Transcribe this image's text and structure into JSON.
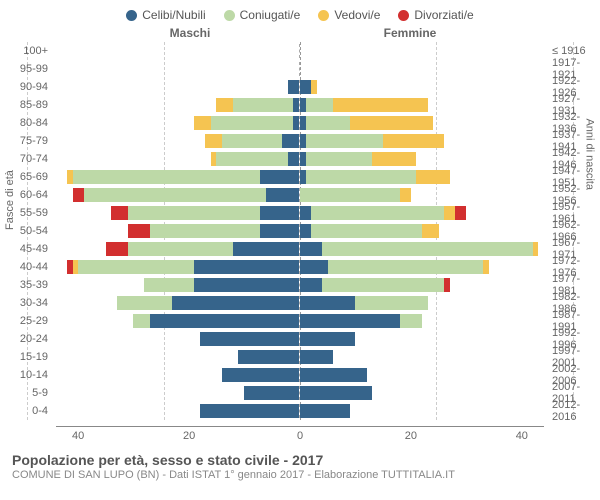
{
  "legend": [
    {
      "label": "Celibi/Nubili",
      "color": "#36648b"
    },
    {
      "label": "Coniugati/e",
      "color": "#bdd9a7"
    },
    {
      "label": "Vedovi/e",
      "color": "#f5c451"
    },
    {
      "label": "Divorziati/e",
      "color": "#d22f2f"
    }
  ],
  "gender": {
    "male": "Maschi",
    "female": "Femmine"
  },
  "y_left_label": "Fasce di età",
  "y_right_label": "Anni di nascita",
  "title": "Popolazione per età, sesso e stato civile - 2017",
  "source": "COMUNE DI SAN LUPO (BN) - Dati ISTAT 1° gennaio 2017 - Elaborazione TUTTITALIA.IT",
  "x_ticks": [
    40,
    20,
    0,
    20,
    40
  ],
  "x_max": 44,
  "colors": {
    "single": "#36648b",
    "married": "#bdd9a7",
    "widowed": "#f5c451",
    "divorced": "#d22f2f",
    "grid": "#cccccc",
    "center": "#999999"
  },
  "rows": [
    {
      "age": "100+",
      "birth": "≤ 1916",
      "m": {
        "single": 0,
        "married": 0,
        "widowed": 0,
        "divorced": 0
      },
      "f": {
        "single": 0,
        "married": 0,
        "widowed": 0,
        "divorced": 0
      }
    },
    {
      "age": "95-99",
      "birth": "1917-1921",
      "m": {
        "single": 0,
        "married": 0,
        "widowed": 0,
        "divorced": 0
      },
      "f": {
        "single": 0,
        "married": 0,
        "widowed": 0,
        "divorced": 0
      }
    },
    {
      "age": "90-94",
      "birth": "1922-1926",
      "m": {
        "single": 2,
        "married": 0,
        "widowed": 0,
        "divorced": 0
      },
      "f": {
        "single": 2,
        "married": 0,
        "widowed": 1,
        "divorced": 0
      }
    },
    {
      "age": "85-89",
      "birth": "1927-1931",
      "m": {
        "single": 1,
        "married": 11,
        "widowed": 3,
        "divorced": 0
      },
      "f": {
        "single": 1,
        "married": 5,
        "widowed": 17,
        "divorced": 0
      }
    },
    {
      "age": "80-84",
      "birth": "1932-1936",
      "m": {
        "single": 1,
        "married": 15,
        "widowed": 3,
        "divorced": 0
      },
      "f": {
        "single": 1,
        "married": 8,
        "widowed": 15,
        "divorced": 0
      }
    },
    {
      "age": "75-79",
      "birth": "1937-1941",
      "m": {
        "single": 3,
        "married": 11,
        "widowed": 3,
        "divorced": 0
      },
      "f": {
        "single": 1,
        "married": 14,
        "widowed": 11,
        "divorced": 0
      }
    },
    {
      "age": "70-74",
      "birth": "1942-1946",
      "m": {
        "single": 2,
        "married": 13,
        "widowed": 1,
        "divorced": 0
      },
      "f": {
        "single": 1,
        "married": 12,
        "widowed": 8,
        "divorced": 0
      }
    },
    {
      "age": "65-69",
      "birth": "1947-1951",
      "m": {
        "single": 7,
        "married": 34,
        "widowed": 1,
        "divorced": 0
      },
      "f": {
        "single": 1,
        "married": 20,
        "widowed": 6,
        "divorced": 0
      }
    },
    {
      "age": "60-64",
      "birth": "1952-1956",
      "m": {
        "single": 6,
        "married": 33,
        "widowed": 0,
        "divorced": 2
      },
      "f": {
        "single": 0,
        "married": 18,
        "widowed": 2,
        "divorced": 0
      }
    },
    {
      "age": "55-59",
      "birth": "1957-1961",
      "m": {
        "single": 7,
        "married": 24,
        "widowed": 0,
        "divorced": 3
      },
      "f": {
        "single": 2,
        "married": 24,
        "widowed": 2,
        "divorced": 2
      }
    },
    {
      "age": "50-54",
      "birth": "1962-1966",
      "m": {
        "single": 7,
        "married": 20,
        "widowed": 0,
        "divorced": 4
      },
      "f": {
        "single": 2,
        "married": 20,
        "widowed": 3,
        "divorced": 0
      }
    },
    {
      "age": "45-49",
      "birth": "1967-1971",
      "m": {
        "single": 12,
        "married": 19,
        "widowed": 0,
        "divorced": 4
      },
      "f": {
        "single": 4,
        "married": 38,
        "widowed": 1,
        "divorced": 0
      }
    },
    {
      "age": "40-44",
      "birth": "1972-1976",
      "m": {
        "single": 19,
        "married": 21,
        "widowed": 1,
        "divorced": 1
      },
      "f": {
        "single": 5,
        "married": 28,
        "widowed": 1,
        "divorced": 0
      }
    },
    {
      "age": "35-39",
      "birth": "1977-1981",
      "m": {
        "single": 19,
        "married": 9,
        "widowed": 0,
        "divorced": 0
      },
      "f": {
        "single": 4,
        "married": 22,
        "widowed": 0,
        "divorced": 1
      }
    },
    {
      "age": "30-34",
      "birth": "1982-1986",
      "m": {
        "single": 23,
        "married": 10,
        "widowed": 0,
        "divorced": 0
      },
      "f": {
        "single": 10,
        "married": 13,
        "widowed": 0,
        "divorced": 0
      }
    },
    {
      "age": "25-29",
      "birth": "1987-1991",
      "m": {
        "single": 27,
        "married": 3,
        "widowed": 0,
        "divorced": 0
      },
      "f": {
        "single": 18,
        "married": 4,
        "widowed": 0,
        "divorced": 0
      }
    },
    {
      "age": "20-24",
      "birth": "1992-1996",
      "m": {
        "single": 18,
        "married": 0,
        "widowed": 0,
        "divorced": 0
      },
      "f": {
        "single": 10,
        "married": 0,
        "widowed": 0,
        "divorced": 0
      }
    },
    {
      "age": "15-19",
      "birth": "1997-2001",
      "m": {
        "single": 11,
        "married": 0,
        "widowed": 0,
        "divorced": 0
      },
      "f": {
        "single": 6,
        "married": 0,
        "widowed": 0,
        "divorced": 0
      }
    },
    {
      "age": "10-14",
      "birth": "2002-2006",
      "m": {
        "single": 14,
        "married": 0,
        "widowed": 0,
        "divorced": 0
      },
      "f": {
        "single": 12,
        "married": 0,
        "widowed": 0,
        "divorced": 0
      }
    },
    {
      "age": "5-9",
      "birth": "2007-2011",
      "m": {
        "single": 10,
        "married": 0,
        "widowed": 0,
        "divorced": 0
      },
      "f": {
        "single": 13,
        "married": 0,
        "widowed": 0,
        "divorced": 0
      }
    },
    {
      "age": "0-4",
      "birth": "2012-2016",
      "m": {
        "single": 18,
        "married": 0,
        "widowed": 0,
        "divorced": 0
      },
      "f": {
        "single": 9,
        "married": 0,
        "widowed": 0,
        "divorced": 0
      }
    }
  ]
}
